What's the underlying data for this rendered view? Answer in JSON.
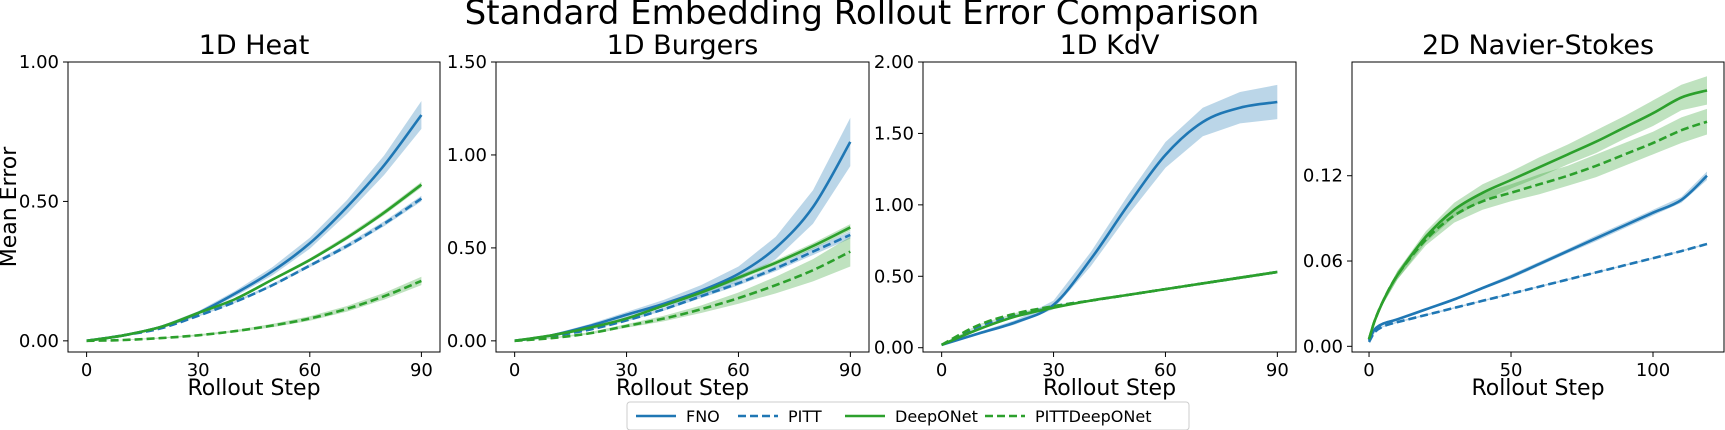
{
  "figure": {
    "title": "Standard Embedding Rollout Error Comparison"
  },
  "legend": {
    "placement": "bottom-center",
    "entries": [
      {
        "label": "FNO",
        "color": "#1f77b4",
        "dash": false
      },
      {
        "label": "PITT",
        "color": "#1f77b4",
        "dash": true
      },
      {
        "label": "DeepONet",
        "color": "#2ca02c",
        "dash": false
      },
      {
        "label": "PITTDeepONet",
        "color": "#2ca02c",
        "dash": true
      }
    ]
  },
  "colors": {
    "blue": "#1f77b4",
    "green": "#2ca02c"
  },
  "chart_data": [
    {
      "type": "line",
      "title": "1D Heat",
      "xlabel": "Rollout Step",
      "ylabel": "Mean Error",
      "xlim": [
        -5,
        95
      ],
      "ylim": [
        -0.04,
        1.0
      ],
      "xticks": [
        0,
        30,
        60,
        90
      ],
      "xtick_labels": [
        "0",
        "30",
        "60",
        "90"
      ],
      "yticks": [
        0.0,
        0.5,
        1.0
      ],
      "ytick_labels": [
        "0.00",
        "0.50",
        "1.00"
      ],
      "x": [
        0,
        10,
        20,
        30,
        40,
        50,
        60,
        70,
        80,
        90
      ],
      "series": [
        {
          "name": "FNO",
          "color": "#1f77b4",
          "dash": false,
          "y": [
            0,
            0.02,
            0.05,
            0.1,
            0.17,
            0.25,
            0.35,
            0.48,
            0.63,
            0.81
          ],
          "band": [
            0,
            0.002,
            0.004,
            0.006,
            0.01,
            0.015,
            0.02,
            0.025,
            0.035,
            0.05
          ]
        },
        {
          "name": "PITT",
          "color": "#1f77b4",
          "dash": true,
          "y": [
            0,
            0.02,
            0.045,
            0.09,
            0.14,
            0.2,
            0.27,
            0.34,
            0.42,
            0.51
          ],
          "band": [
            0,
            0.001,
            0.002,
            0.003,
            0.004,
            0.005,
            0.006,
            0.008,
            0.009,
            0.01
          ]
        },
        {
          "name": "DeepONet",
          "color": "#2ca02c",
          "dash": false,
          "y": [
            0,
            0.02,
            0.05,
            0.1,
            0.15,
            0.22,
            0.29,
            0.37,
            0.46,
            0.56
          ],
          "band": [
            0,
            0.001,
            0.002,
            0.003,
            0.004,
            0.005,
            0.006,
            0.008,
            0.009,
            0.01
          ]
        },
        {
          "name": "PITTDeepONet",
          "color": "#2ca02c",
          "dash": true,
          "y": [
            0,
            0.003,
            0.01,
            0.02,
            0.035,
            0.055,
            0.08,
            0.115,
            0.16,
            0.215
          ],
          "band": [
            0,
            0.001,
            0.002,
            0.003,
            0.004,
            0.006,
            0.008,
            0.01,
            0.012,
            0.015
          ]
        }
      ]
    },
    {
      "type": "line",
      "title": "1D Burgers",
      "xlabel": "Rollout Step",
      "ylabel": "",
      "xlim": [
        -5,
        95
      ],
      "ylim": [
        -0.06,
        1.5
      ],
      "xticks": [
        0,
        30,
        60,
        90
      ],
      "xtick_labels": [
        "0",
        "30",
        "60",
        "90"
      ],
      "yticks": [
        0.0,
        0.5,
        1.0,
        1.5
      ],
      "ytick_labels": [
        "0.00",
        "0.50",
        "1.00",
        "1.50"
      ],
      "x": [
        0,
        10,
        20,
        30,
        40,
        50,
        60,
        70,
        80,
        90
      ],
      "series": [
        {
          "name": "FNO",
          "color": "#1f77b4",
          "dash": false,
          "y": [
            0,
            0.03,
            0.08,
            0.14,
            0.2,
            0.27,
            0.36,
            0.5,
            0.72,
            1.07
          ],
          "band": [
            0,
            0.005,
            0.01,
            0.015,
            0.02,
            0.03,
            0.04,
            0.06,
            0.09,
            0.13
          ]
        },
        {
          "name": "PITT",
          "color": "#1f77b4",
          "dash": true,
          "y": [
            0,
            0.025,
            0.06,
            0.11,
            0.17,
            0.24,
            0.31,
            0.39,
            0.48,
            0.57
          ],
          "band": [
            0,
            0.002,
            0.004,
            0.006,
            0.008,
            0.01,
            0.012,
            0.015,
            0.018,
            0.02
          ]
        },
        {
          "name": "DeepONet",
          "color": "#2ca02c",
          "dash": false,
          "y": [
            0,
            0.03,
            0.07,
            0.12,
            0.19,
            0.26,
            0.34,
            0.42,
            0.51,
            0.61
          ],
          "band": [
            0,
            0.002,
            0.004,
            0.006,
            0.008,
            0.01,
            0.012,
            0.014,
            0.016,
            0.018
          ]
        },
        {
          "name": "PITTDeepONet",
          "color": "#2ca02c",
          "dash": true,
          "y": [
            0,
            0.015,
            0.04,
            0.08,
            0.12,
            0.17,
            0.23,
            0.3,
            0.38,
            0.48
          ],
          "band": [
            0,
            0.003,
            0.006,
            0.01,
            0.015,
            0.02,
            0.03,
            0.045,
            0.06,
            0.08
          ]
        }
      ]
    },
    {
      "type": "line",
      "title": "1D KdV",
      "xlabel": "Rollout Step",
      "ylabel": "",
      "xlim": [
        -5,
        95
      ],
      "ylim": [
        -0.03,
        2.0
      ],
      "xticks": [
        0,
        30,
        60,
        90
      ],
      "xtick_labels": [
        "0",
        "30",
        "60",
        "90"
      ],
      "yticks": [
        0.0,
        0.5,
        1.0,
        1.5,
        2.0
      ],
      "ytick_labels": [
        "0.00",
        "0.50",
        "1.00",
        "1.50",
        "2.00"
      ],
      "x": [
        0,
        10,
        20,
        30,
        40,
        50,
        60,
        70,
        80,
        90
      ],
      "series": [
        {
          "name": "FNO",
          "color": "#1f77b4",
          "dash": false,
          "y": [
            0.02,
            0.1,
            0.18,
            0.3,
            0.62,
            1.0,
            1.35,
            1.58,
            1.68,
            1.72
          ],
          "band": [
            0.005,
            0.01,
            0.015,
            0.03,
            0.05,
            0.07,
            0.09,
            0.1,
            0.11,
            0.12
          ]
        },
        {
          "name": "PITT",
          "color": "#1f77b4",
          "dash": true,
          "y": [
            0.02,
            0.15,
            0.23,
            0.29,
            0.33,
            0.37,
            0.41,
            0.45,
            0.49,
            0.53
          ],
          "band": [
            0.002,
            0.004,
            0.005,
            0.006,
            0.007,
            0.008,
            0.008,
            0.009,
            0.01,
            0.01
          ]
        },
        {
          "name": "DeepONet",
          "color": "#2ca02c",
          "dash": false,
          "y": [
            0.02,
            0.13,
            0.22,
            0.28,
            0.33,
            0.37,
            0.41,
            0.45,
            0.49,
            0.53
          ],
          "band": [
            0.002,
            0.004,
            0.005,
            0.006,
            0.007,
            0.008,
            0.008,
            0.009,
            0.01,
            0.01
          ]
        },
        {
          "name": "PITTDeepONet",
          "color": "#2ca02c",
          "dash": true,
          "y": [
            0.02,
            0.16,
            0.24,
            0.29,
            0.33,
            0.37,
            0.41,
            0.45,
            0.49,
            0.53
          ],
          "band": [
            0.002,
            0.004,
            0.005,
            0.006,
            0.007,
            0.008,
            0.008,
            0.009,
            0.01,
            0.01
          ]
        }
      ]
    },
    {
      "type": "line",
      "title": "2D Navier-Stokes",
      "xlabel": "Rollout Step",
      "ylabel": "",
      "xlim": [
        -6,
        125
      ],
      "ylim": [
        -0.004,
        0.2
      ],
      "xticks": [
        0,
        50,
        100
      ],
      "xtick_labels": [
        "0",
        "50",
        "100"
      ],
      "yticks": [
        0.0,
        0.06,
        0.12
      ],
      "ytick_labels": [
        "0.00",
        "0.06",
        "0.12"
      ],
      "x": [
        0,
        2,
        5,
        10,
        20,
        30,
        40,
        50,
        60,
        70,
        80,
        90,
        100,
        110,
        119
      ],
      "series": [
        {
          "name": "FNO",
          "color": "#1f77b4",
          "dash": false,
          "y": [
            0.004,
            0.012,
            0.016,
            0.019,
            0.026,
            0.033,
            0.041,
            0.049,
            0.058,
            0.067,
            0.076,
            0.085,
            0.094,
            0.103,
            0.12
          ],
          "band": [
            0.001,
            0.001,
            0.001,
            0.001,
            0.001,
            0.001,
            0.001,
            0.0015,
            0.0015,
            0.0015,
            0.002,
            0.002,
            0.002,
            0.002,
            0.003
          ]
        },
        {
          "name": "PITT",
          "color": "#1f77b4",
          "dash": true,
          "y": [
            0.003,
            0.01,
            0.014,
            0.017,
            0.022,
            0.027,
            0.032,
            0.037,
            0.042,
            0.047,
            0.052,
            0.057,
            0.062,
            0.067,
            0.072
          ],
          "band": [
            0.0005,
            0.0005,
            0.0005,
            0.0005,
            0.0005,
            0.0005,
            0.0005,
            0.0005,
            0.0005,
            0.0005,
            0.0005,
            0.0005,
            0.0005,
            0.0005,
            0.0005
          ]
        },
        {
          "name": "DeepONet",
          "color": "#2ca02c",
          "dash": false,
          "y": [
            0.005,
            0.018,
            0.032,
            0.05,
            0.077,
            0.096,
            0.108,
            0.117,
            0.126,
            0.135,
            0.144,
            0.154,
            0.164,
            0.175,
            0.18
          ],
          "band": [
            0.001,
            0.002,
            0.002,
            0.003,
            0.004,
            0.005,
            0.006,
            0.006,
            0.007,
            0.007,
            0.008,
            0.008,
            0.009,
            0.009,
            0.01
          ]
        },
        {
          "name": "PITTDeepONet",
          "color": "#2ca02c",
          "dash": true,
          "y": [
            0.005,
            0.018,
            0.032,
            0.05,
            0.075,
            0.092,
            0.102,
            0.108,
            0.114,
            0.12,
            0.127,
            0.135,
            0.143,
            0.152,
            0.158
          ],
          "band": [
            0.001,
            0.002,
            0.002,
            0.003,
            0.004,
            0.005,
            0.006,
            0.006,
            0.007,
            0.007,
            0.008,
            0.008,
            0.008,
            0.009,
            0.009
          ]
        }
      ]
    }
  ]
}
